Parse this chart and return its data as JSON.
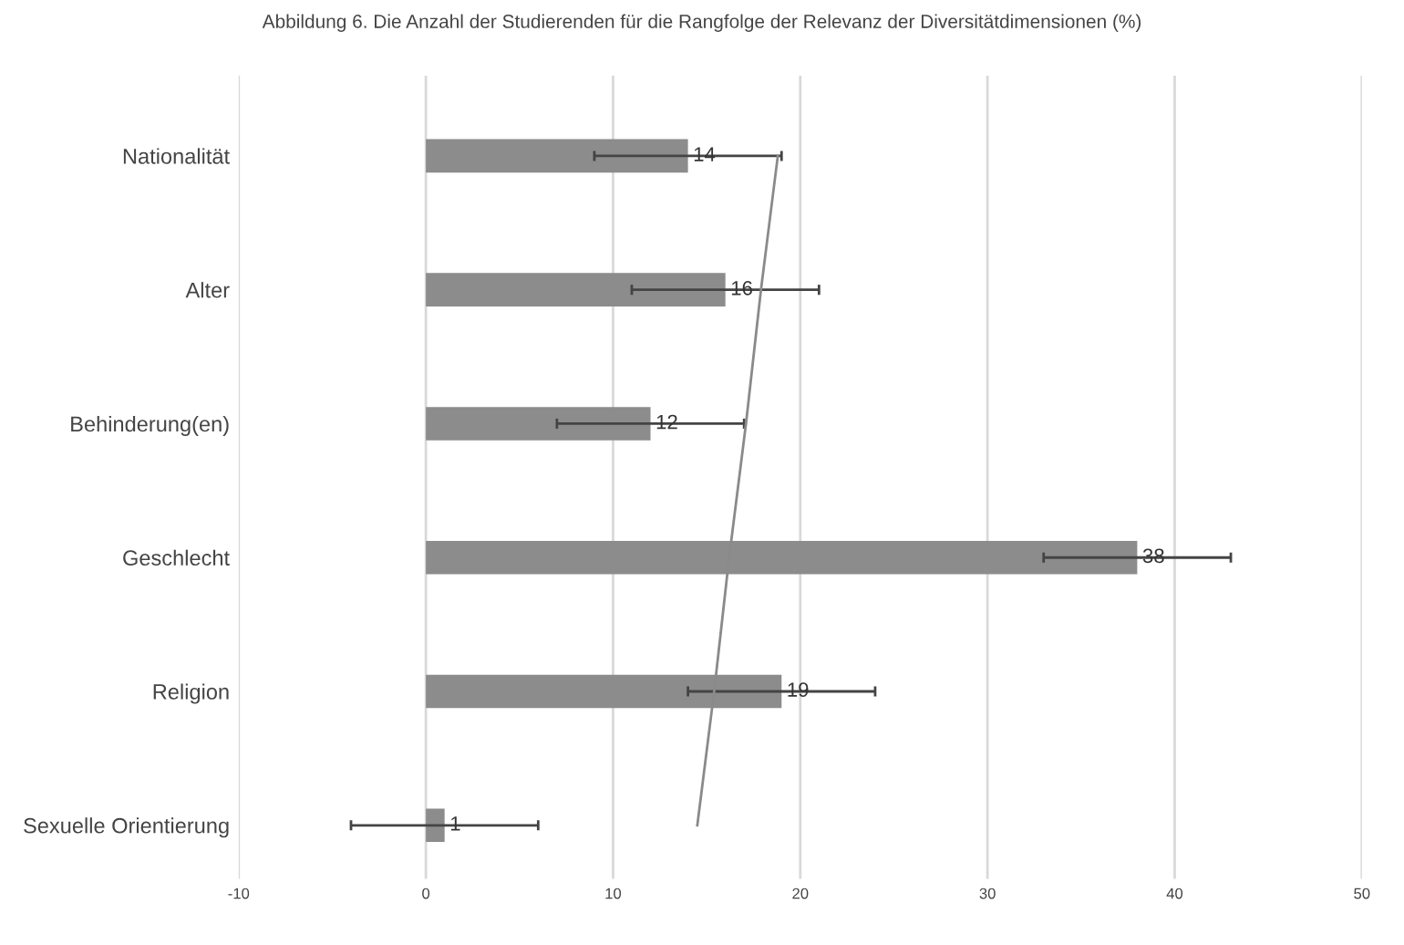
{
  "chart_data": {
    "type": "bar",
    "orientation": "horizontal",
    "title": "Abbildung 6. Die Anzahl der Studierenden für die Rangfolge der Relevanz der Diversitätdimensionen (%)",
    "categories": [
      "Nationalität",
      "Alter",
      "Behinderung(en)",
      "Geschlecht",
      "Religion",
      "Sexuelle Orientierung"
    ],
    "series": [
      {
        "color": "#8c8c8c",
        "values": [
          14,
          16,
          12,
          38,
          19,
          1
        ],
        "errors": [
          5,
          5,
          5,
          5,
          5,
          5
        ],
        "value_labels": [
          "14",
          "16",
          "12",
          "38",
          "19",
          "1"
        ]
      },
      {
        "type": "line",
        "color": "#8a8a8a",
        "values": [
          18.8,
          17.9,
          17.1,
          16.2,
          15.4,
          14.5
        ]
      }
    ],
    "xlim": [
      -10,
      50
    ],
    "xticks": [
      -10,
      0,
      10,
      20,
      30,
      40,
      50
    ],
    "grid": "x",
    "legend": false
  }
}
